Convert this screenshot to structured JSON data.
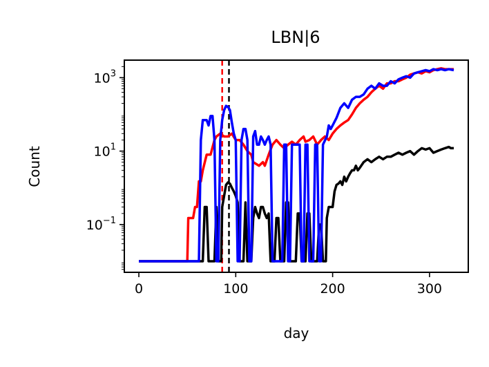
{
  "chart_data": {
    "type": "line",
    "title": "LBN|6",
    "xlabel": "day",
    "ylabel": "Count",
    "xlim": [
      -15,
      340
    ],
    "ylim": [
      0.005,
      3000
    ],
    "yscale": "log",
    "grid": false,
    "xticks": [
      0,
      100,
      200,
      300
    ],
    "yticks": [
      {
        "value": 0.1,
        "base": "10",
        "exp": "−1"
      },
      {
        "value": 10,
        "base": "10",
        "exp": "1"
      },
      {
        "value": 1000,
        "base": "10",
        "exp": "3"
      }
    ],
    "vlines": [
      {
        "x": 86,
        "color": "#ff0000",
        "style": "dashed"
      },
      {
        "x": 93,
        "color": "#000000",
        "style": "dashed"
      }
    ],
    "series": [
      {
        "color": "#ff0000",
        "points": [
          [
            0,
            0.01
          ],
          [
            50,
            0.01
          ],
          [
            51,
            0.15
          ],
          [
            56,
            0.15
          ],
          [
            58,
            0.3
          ],
          [
            60,
            0.3
          ],
          [
            62,
            1.5
          ],
          [
            64,
            1.5
          ],
          [
            66,
            3
          ],
          [
            70,
            8
          ],
          [
            74,
            8
          ],
          [
            78,
            20
          ],
          [
            80,
            25
          ],
          [
            84,
            30
          ],
          [
            88,
            25
          ],
          [
            92,
            25
          ],
          [
            96,
            30
          ],
          [
            100,
            20
          ],
          [
            104,
            20
          ],
          [
            108,
            15
          ],
          [
            112,
            10
          ],
          [
            116,
            8
          ],
          [
            118,
            5
          ],
          [
            124,
            4
          ],
          [
            128,
            5
          ],
          [
            130,
            4
          ],
          [
            134,
            8
          ],
          [
            138,
            15
          ],
          [
            142,
            20
          ],
          [
            146,
            15
          ],
          [
            150,
            12
          ],
          [
            154,
            15
          ],
          [
            158,
            18
          ],
          [
            162,
            15
          ],
          [
            166,
            20
          ],
          [
            170,
            25
          ],
          [
            172,
            18
          ],
          [
            176,
            20
          ],
          [
            180,
            25
          ],
          [
            184,
            15
          ],
          [
            188,
            20
          ],
          [
            192,
            25
          ],
          [
            196,
            20
          ],
          [
            200,
            30
          ],
          [
            204,
            40
          ],
          [
            208,
            50
          ],
          [
            212,
            60
          ],
          [
            216,
            70
          ],
          [
            220,
            100
          ],
          [
            224,
            150
          ],
          [
            228,
            200
          ],
          [
            232,
            250
          ],
          [
            236,
            300
          ],
          [
            240,
            400
          ],
          [
            244,
            500
          ],
          [
            248,
            600
          ],
          [
            252,
            500
          ],
          [
            256,
            700
          ],
          [
            260,
            700
          ],
          [
            264,
            800
          ],
          [
            268,
            800
          ],
          [
            272,
            900
          ],
          [
            276,
            1000
          ],
          [
            280,
            1200
          ],
          [
            284,
            1300
          ],
          [
            288,
            1400
          ],
          [
            292,
            1300
          ],
          [
            296,
            1500
          ],
          [
            300,
            1400
          ],
          [
            304,
            1600
          ],
          [
            308,
            1700
          ],
          [
            312,
            1800
          ],
          [
            316,
            1700
          ],
          [
            320,
            1700
          ],
          [
            325,
            1700
          ]
        ]
      },
      {
        "color": "#000000",
        "points": [
          [
            0,
            0.01
          ],
          [
            64,
            0.01
          ],
          [
            66,
            0.01
          ],
          [
            68,
            0.3
          ],
          [
            70,
            0.3
          ],
          [
            72,
            0.01
          ],
          [
            78,
            0.01
          ],
          [
            80,
            0.3
          ],
          [
            82,
            0.01
          ],
          [
            85,
            0.01
          ],
          [
            86,
            0.3
          ],
          [
            88,
            0.6
          ],
          [
            90,
            1.2
          ],
          [
            92,
            1.4
          ],
          [
            94,
            1.3
          ],
          [
            96,
            1
          ],
          [
            98,
            0.8
          ],
          [
            100,
            0.6
          ],
          [
            102,
            0.4
          ],
          [
            104,
            0.01
          ],
          [
            108,
            0.01
          ],
          [
            110,
            0.4
          ],
          [
            112,
            0.01
          ],
          [
            116,
            0.01
          ],
          [
            118,
            0.15
          ],
          [
            120,
            0.3
          ],
          [
            122,
            0.2
          ],
          [
            124,
            0.15
          ],
          [
            126,
            0.3
          ],
          [
            128,
            0.3
          ],
          [
            130,
            0.2
          ],
          [
            132,
            0.15
          ],
          [
            134,
            0.2
          ],
          [
            136,
            0.01
          ],
          [
            140,
            0.01
          ],
          [
            142,
            0.15
          ],
          [
            144,
            0.15
          ],
          [
            146,
            0.01
          ],
          [
            150,
            0.01
          ],
          [
            152,
            0.4
          ],
          [
            154,
            0.4
          ],
          [
            156,
            0.01
          ],
          [
            162,
            0.01
          ],
          [
            164,
            0.2
          ],
          [
            166,
            0.2
          ],
          [
            168,
            0.01
          ],
          [
            172,
            0.01
          ],
          [
            174,
            0.2
          ],
          [
            176,
            0.2
          ],
          [
            178,
            0.01
          ],
          [
            184,
            0.01
          ],
          [
            186,
            0.1
          ],
          [
            188,
            0.1
          ],
          [
            190,
            0.01
          ],
          [
            193,
            0.01
          ],
          [
            194,
            0.15
          ],
          [
            196,
            0.3
          ],
          [
            200,
            0.3
          ],
          [
            202,
            0.8
          ],
          [
            204,
            1.2
          ],
          [
            206,
            1.3
          ],
          [
            208,
            1.5
          ],
          [
            210,
            1.2
          ],
          [
            212,
            2
          ],
          [
            214,
            1.5
          ],
          [
            216,
            2
          ],
          [
            218,
            2.5
          ],
          [
            220,
            3
          ],
          [
            222,
            3
          ],
          [
            224,
            4
          ],
          [
            226,
            3
          ],
          [
            228,
            3.5
          ],
          [
            232,
            5
          ],
          [
            236,
            6
          ],
          [
            240,
            5
          ],
          [
            244,
            6
          ],
          [
            248,
            7
          ],
          [
            252,
            6
          ],
          [
            256,
            7
          ],
          [
            260,
            7
          ],
          [
            264,
            8
          ],
          [
            268,
            9
          ],
          [
            272,
            8
          ],
          [
            276,
            9
          ],
          [
            280,
            10
          ],
          [
            284,
            8
          ],
          [
            288,
            10
          ],
          [
            292,
            12
          ],
          [
            296,
            11
          ],
          [
            300,
            12
          ],
          [
            304,
            9
          ],
          [
            308,
            10
          ],
          [
            312,
            11
          ],
          [
            316,
            12
          ],
          [
            320,
            13
          ],
          [
            322,
            12
          ],
          [
            325,
            12
          ]
        ]
      },
      {
        "color": "#0000ff",
        "points": [
          [
            0,
            0.01
          ],
          [
            62,
            0.01
          ],
          [
            64,
            20
          ],
          [
            66,
            70
          ],
          [
            70,
            70
          ],
          [
            72,
            50
          ],
          [
            74,
            90
          ],
          [
            76,
            90
          ],
          [
            78,
            20
          ],
          [
            80,
            0.01
          ],
          [
            82,
            0.01
          ],
          [
            84,
            20
          ],
          [
            86,
            70
          ],
          [
            88,
            130
          ],
          [
            90,
            170
          ],
          [
            92,
            160
          ],
          [
            94,
            130
          ],
          [
            96,
            60
          ],
          [
            98,
            30
          ],
          [
            100,
            20
          ],
          [
            102,
            0.01
          ],
          [
            104,
            0.01
          ],
          [
            106,
            20
          ],
          [
            108,
            40
          ],
          [
            110,
            40
          ],
          [
            112,
            20
          ],
          [
            114,
            0.01
          ],
          [
            116,
            0.01
          ],
          [
            118,
            25
          ],
          [
            120,
            35
          ],
          [
            122,
            15
          ],
          [
            124,
            15
          ],
          [
            126,
            25
          ],
          [
            128,
            20
          ],
          [
            130,
            15
          ],
          [
            132,
            20
          ],
          [
            134,
            25
          ],
          [
            136,
            15
          ],
          [
            138,
            0.01
          ],
          [
            148,
            0.01
          ],
          [
            150,
            15
          ],
          [
            152,
            15
          ],
          [
            154,
            0.01
          ],
          [
            156,
            0.01
          ],
          [
            158,
            15
          ],
          [
            162,
            15
          ],
          [
            166,
            15
          ],
          [
            168,
            0.01
          ],
          [
            170,
            0.01
          ],
          [
            172,
            15
          ],
          [
            174,
            15
          ],
          [
            176,
            0.01
          ],
          [
            180,
            0.01
          ],
          [
            182,
            15
          ],
          [
            184,
            15
          ],
          [
            186,
            0.01
          ],
          [
            188,
            0.01
          ],
          [
            190,
            15
          ],
          [
            194,
            25
          ],
          [
            196,
            50
          ],
          [
            198,
            40
          ],
          [
            200,
            50
          ],
          [
            204,
            80
          ],
          [
            208,
            150
          ],
          [
            212,
            200
          ],
          [
            216,
            150
          ],
          [
            220,
            250
          ],
          [
            224,
            300
          ],
          [
            228,
            300
          ],
          [
            232,
            350
          ],
          [
            236,
            500
          ],
          [
            240,
            600
          ],
          [
            244,
            500
          ],
          [
            248,
            700
          ],
          [
            252,
            600
          ],
          [
            256,
            600
          ],
          [
            260,
            800
          ],
          [
            264,
            700
          ],
          [
            268,
            900
          ],
          [
            272,
            1000
          ],
          [
            276,
            1100
          ],
          [
            280,
            1000
          ],
          [
            284,
            1300
          ],
          [
            288,
            1400
          ],
          [
            292,
            1500
          ],
          [
            296,
            1600
          ],
          [
            300,
            1500
          ],
          [
            304,
            1700
          ],
          [
            308,
            1600
          ],
          [
            312,
            1700
          ],
          [
            316,
            1600
          ],
          [
            320,
            1700
          ],
          [
            325,
            1600
          ]
        ]
      }
    ]
  }
}
